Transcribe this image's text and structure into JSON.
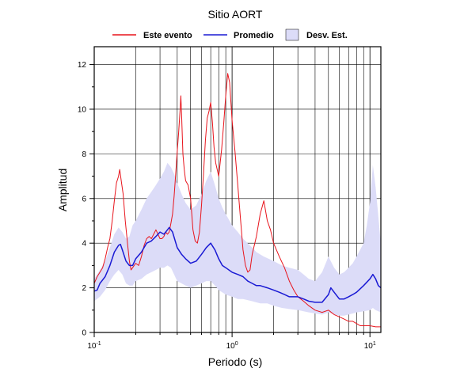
{
  "chart_data": {
    "type": "line",
    "title": "Sitio AORT",
    "xlabel": "Periodo (s)",
    "ylabel": "Amplitud",
    "xscale": "log",
    "xlim": [
      0.1,
      12
    ],
    "ylim": [
      0,
      12.8
    ],
    "grid": true,
    "legend_position": "top-center",
    "x_ticks": [
      {
        "value": 0.1,
        "base": "10",
        "exp": "-1"
      },
      {
        "value": 1,
        "base": "10",
        "exp": "0"
      },
      {
        "value": 10,
        "base": "10",
        "exp": "1"
      }
    ],
    "y_ticks": [
      0,
      2,
      4,
      6,
      8,
      10,
      12
    ],
    "series": [
      {
        "name": "Este evento",
        "color": "#e8141c",
        "points": [
          [
            0.1,
            2.2
          ],
          [
            0.105,
            2.5
          ],
          [
            0.11,
            2.7
          ],
          [
            0.115,
            2.9
          ],
          [
            0.12,
            3.3
          ],
          [
            0.125,
            3.8
          ],
          [
            0.13,
            4.2
          ],
          [
            0.135,
            5.0
          ],
          [
            0.14,
            5.9
          ],
          [
            0.145,
            6.7
          ],
          [
            0.15,
            7.0
          ],
          [
            0.153,
            7.3
          ],
          [
            0.157,
            6.8
          ],
          [
            0.162,
            6.2
          ],
          [
            0.168,
            5.0
          ],
          [
            0.175,
            3.9
          ],
          [
            0.18,
            3.2
          ],
          [
            0.185,
            2.8
          ],
          [
            0.19,
            2.9
          ],
          [
            0.2,
            3.1
          ],
          [
            0.21,
            3.0
          ],
          [
            0.22,
            3.4
          ],
          [
            0.23,
            3.9
          ],
          [
            0.24,
            4.2
          ],
          [
            0.25,
            4.3
          ],
          [
            0.26,
            4.2
          ],
          [
            0.27,
            4.4
          ],
          [
            0.28,
            4.6
          ],
          [
            0.29,
            4.4
          ],
          [
            0.3,
            4.2
          ],
          [
            0.31,
            4.2
          ],
          [
            0.32,
            4.3
          ],
          [
            0.33,
            4.5
          ],
          [
            0.34,
            4.4
          ],
          [
            0.35,
            4.5
          ],
          [
            0.36,
            4.9
          ],
          [
            0.37,
            5.3
          ],
          [
            0.38,
            6.1
          ],
          [
            0.39,
            7.1
          ],
          [
            0.4,
            8.1
          ],
          [
            0.41,
            9.0
          ],
          [
            0.42,
            10.0
          ],
          [
            0.425,
            10.6
          ],
          [
            0.43,
            9.8
          ],
          [
            0.44,
            8.0
          ],
          [
            0.45,
            7.3
          ],
          [
            0.46,
            6.8
          ],
          [
            0.48,
            6.6
          ],
          [
            0.5,
            6.0
          ],
          [
            0.52,
            4.6
          ],
          [
            0.54,
            4.1
          ],
          [
            0.56,
            4.0
          ],
          [
            0.58,
            4.5
          ],
          [
            0.6,
            5.7
          ],
          [
            0.62,
            7.1
          ],
          [
            0.64,
            8.6
          ],
          [
            0.66,
            9.6
          ],
          [
            0.68,
            9.9
          ],
          [
            0.7,
            10.3
          ],
          [
            0.72,
            9.4
          ],
          [
            0.74,
            8.3
          ],
          [
            0.76,
            7.6
          ],
          [
            0.8,
            7.0
          ],
          [
            0.84,
            8.2
          ],
          [
            0.87,
            9.4
          ],
          [
            0.9,
            10.6
          ],
          [
            0.93,
            11.6
          ],
          [
            0.96,
            11.2
          ],
          [
            1.0,
            9.5
          ],
          [
            1.05,
            8.1
          ],
          [
            1.1,
            6.6
          ],
          [
            1.15,
            5.1
          ],
          [
            1.2,
            3.7
          ],
          [
            1.25,
            3.0
          ],
          [
            1.3,
            2.7
          ],
          [
            1.35,
            2.8
          ],
          [
            1.4,
            3.5
          ],
          [
            1.5,
            4.3
          ],
          [
            1.6,
            5.3
          ],
          [
            1.7,
            5.9
          ],
          [
            1.8,
            5.0
          ],
          [
            1.9,
            4.6
          ],
          [
            2.0,
            4.0
          ],
          [
            2.2,
            3.4
          ],
          [
            2.4,
            2.9
          ],
          [
            2.6,
            2.3
          ],
          [
            2.8,
            1.9
          ],
          [
            3.0,
            1.6
          ],
          [
            3.3,
            1.4
          ],
          [
            3.6,
            1.2
          ],
          [
            4.0,
            1.0
          ],
          [
            4.5,
            0.9
          ],
          [
            5.0,
            1.0
          ],
          [
            5.5,
            0.8
          ],
          [
            6.0,
            0.7
          ],
          [
            6.5,
            0.6
          ],
          [
            7.0,
            0.5
          ],
          [
            7.5,
            0.5
          ],
          [
            8.0,
            0.4
          ],
          [
            8.5,
            0.3
          ],
          [
            9.0,
            0.3
          ],
          [
            10.0,
            0.3
          ],
          [
            11.0,
            0.25
          ],
          [
            12.0,
            0.25
          ]
        ]
      },
      {
        "name": "Promedio",
        "color": "#1a1ad4",
        "points": [
          [
            0.1,
            1.85
          ],
          [
            0.105,
            1.9
          ],
          [
            0.11,
            2.2
          ],
          [
            0.12,
            2.5
          ],
          [
            0.13,
            3.0
          ],
          [
            0.14,
            3.6
          ],
          [
            0.15,
            3.9
          ],
          [
            0.155,
            3.95
          ],
          [
            0.16,
            3.7
          ],
          [
            0.17,
            3.2
          ],
          [
            0.18,
            3.0
          ],
          [
            0.19,
            3.0
          ],
          [
            0.2,
            3.3
          ],
          [
            0.22,
            3.6
          ],
          [
            0.24,
            4.0
          ],
          [
            0.26,
            4.1
          ],
          [
            0.28,
            4.3
          ],
          [
            0.3,
            4.5
          ],
          [
            0.32,
            4.4
          ],
          [
            0.34,
            4.6
          ],
          [
            0.35,
            4.7
          ],
          [
            0.37,
            4.5
          ],
          [
            0.4,
            3.8
          ],
          [
            0.43,
            3.5
          ],
          [
            0.46,
            3.3
          ],
          [
            0.5,
            3.1
          ],
          [
            0.55,
            3.2
          ],
          [
            0.6,
            3.5
          ],
          [
            0.65,
            3.8
          ],
          [
            0.7,
            4.0
          ],
          [
            0.75,
            3.7
          ],
          [
            0.8,
            3.3
          ],
          [
            0.85,
            3.0
          ],
          [
            0.9,
            2.9
          ],
          [
            1.0,
            2.7
          ],
          [
            1.1,
            2.6
          ],
          [
            1.2,
            2.5
          ],
          [
            1.3,
            2.3
          ],
          [
            1.4,
            2.2
          ],
          [
            1.5,
            2.1
          ],
          [
            1.6,
            2.1
          ],
          [
            1.8,
            2.0
          ],
          [
            2.0,
            1.9
          ],
          [
            2.2,
            1.8
          ],
          [
            2.4,
            1.7
          ],
          [
            2.6,
            1.6
          ],
          [
            2.8,
            1.6
          ],
          [
            3.0,
            1.6
          ],
          [
            3.3,
            1.5
          ],
          [
            3.6,
            1.4
          ],
          [
            4.0,
            1.35
          ],
          [
            4.5,
            1.35
          ],
          [
            5.0,
            1.7
          ],
          [
            5.2,
            2.0
          ],
          [
            5.5,
            1.8
          ],
          [
            6.0,
            1.5
          ],
          [
            6.5,
            1.5
          ],
          [
            7.0,
            1.6
          ],
          [
            7.5,
            1.7
          ],
          [
            8.0,
            1.8
          ],
          [
            9.0,
            2.1
          ],
          [
            10.0,
            2.4
          ],
          [
            10.5,
            2.6
          ],
          [
            11.0,
            2.4
          ],
          [
            11.5,
            2.1
          ],
          [
            12.0,
            2.0
          ]
        ]
      }
    ],
    "band": {
      "name": "Desv. Est.",
      "color": "#dcdcf8",
      "upper": [
        [
          0.1,
          2.4
        ],
        [
          0.11,
          2.8
        ],
        [
          0.12,
          3.2
        ],
        [
          0.13,
          3.8
        ],
        [
          0.14,
          4.4
        ],
        [
          0.15,
          4.7
        ],
        [
          0.16,
          4.5
        ],
        [
          0.17,
          4.2
        ],
        [
          0.18,
          4.3
        ],
        [
          0.19,
          4.8
        ],
        [
          0.2,
          5.0
        ],
        [
          0.22,
          5.5
        ],
        [
          0.24,
          6.0
        ],
        [
          0.26,
          6.3
        ],
        [
          0.28,
          6.6
        ],
        [
          0.3,
          6.9
        ],
        [
          0.32,
          7.2
        ],
        [
          0.34,
          7.6
        ],
        [
          0.36,
          7.4
        ],
        [
          0.38,
          7.1
        ],
        [
          0.4,
          6.7
        ],
        [
          0.43,
          6.2
        ],
        [
          0.46,
          5.8
        ],
        [
          0.5,
          5.5
        ],
        [
          0.55,
          5.7
        ],
        [
          0.6,
          6.2
        ],
        [
          0.65,
          6.8
        ],
        [
          0.7,
          7.2
        ],
        [
          0.75,
          6.6
        ],
        [
          0.8,
          6.0
        ],
        [
          0.85,
          5.6
        ],
        [
          0.9,
          5.3
        ],
        [
          1.0,
          4.8
        ],
        [
          1.1,
          4.5
        ],
        [
          1.2,
          4.2
        ],
        [
          1.3,
          4.0
        ],
        [
          1.4,
          3.8
        ],
        [
          1.5,
          3.6
        ],
        [
          1.7,
          3.4
        ],
        [
          2.0,
          3.2
        ],
        [
          2.3,
          3.0
        ],
        [
          2.6,
          2.9
        ],
        [
          3.0,
          2.8
        ],
        [
          3.3,
          2.6
        ],
        [
          3.6,
          2.4
        ],
        [
          4.0,
          2.3
        ],
        [
          4.5,
          2.7
        ],
        [
          5.0,
          3.4
        ],
        [
          5.5,
          2.9
        ],
        [
          6.0,
          2.6
        ],
        [
          6.5,
          2.7
        ],
        [
          7.0,
          2.9
        ],
        [
          7.5,
          3.1
        ],
        [
          8.0,
          3.4
        ],
        [
          9.0,
          4.0
        ],
        [
          9.5,
          4.8
        ],
        [
          10.0,
          5.8
        ],
        [
          10.5,
          7.5
        ],
        [
          11.0,
          6.5
        ],
        [
          12.0,
          4.0
        ]
      ],
      "lower": [
        [
          0.1,
          1.4
        ],
        [
          0.11,
          1.6
        ],
        [
          0.12,
          1.9
        ],
        [
          0.13,
          2.3
        ],
        [
          0.14,
          2.6
        ],
        [
          0.15,
          2.8
        ],
        [
          0.16,
          2.6
        ],
        [
          0.17,
          2.2
        ],
        [
          0.18,
          2.1
        ],
        [
          0.19,
          2.1
        ],
        [
          0.2,
          2.3
        ],
        [
          0.22,
          2.4
        ],
        [
          0.24,
          2.6
        ],
        [
          0.26,
          2.7
        ],
        [
          0.28,
          2.8
        ],
        [
          0.3,
          2.9
        ],
        [
          0.32,
          2.9
        ],
        [
          0.34,
          3.0
        ],
        [
          0.36,
          2.9
        ],
        [
          0.38,
          2.6
        ],
        [
          0.4,
          2.3
        ],
        [
          0.43,
          2.2
        ],
        [
          0.46,
          2.1
        ],
        [
          0.5,
          2.0
        ],
        [
          0.55,
          2.1
        ],
        [
          0.6,
          2.2
        ],
        [
          0.65,
          2.3
        ],
        [
          0.7,
          2.3
        ],
        [
          0.75,
          2.1
        ],
        [
          0.8,
          1.9
        ],
        [
          0.9,
          1.7
        ],
        [
          1.0,
          1.6
        ],
        [
          1.1,
          1.5
        ],
        [
          1.2,
          1.5
        ],
        [
          1.4,
          1.4
        ],
        [
          1.6,
          1.3
        ],
        [
          1.8,
          1.3
        ],
        [
          2.0,
          1.2
        ],
        [
          2.3,
          1.1
        ],
        [
          2.6,
          1.05
        ],
        [
          3.0,
          1.0
        ],
        [
          3.3,
          0.95
        ],
        [
          3.6,
          0.9
        ],
        [
          4.0,
          0.85
        ],
        [
          4.5,
          0.8
        ],
        [
          5.0,
          0.9
        ],
        [
          5.5,
          0.8
        ],
        [
          6.0,
          0.75
        ],
        [
          6.5,
          0.75
        ],
        [
          7.0,
          0.8
        ],
        [
          7.5,
          0.85
        ],
        [
          8.0,
          0.9
        ],
        [
          9.0,
          0.95
        ],
        [
          10.0,
          1.0
        ],
        [
          10.5,
          1.1
        ],
        [
          11.0,
          1.0
        ],
        [
          12.0,
          0.9
        ]
      ]
    }
  }
}
